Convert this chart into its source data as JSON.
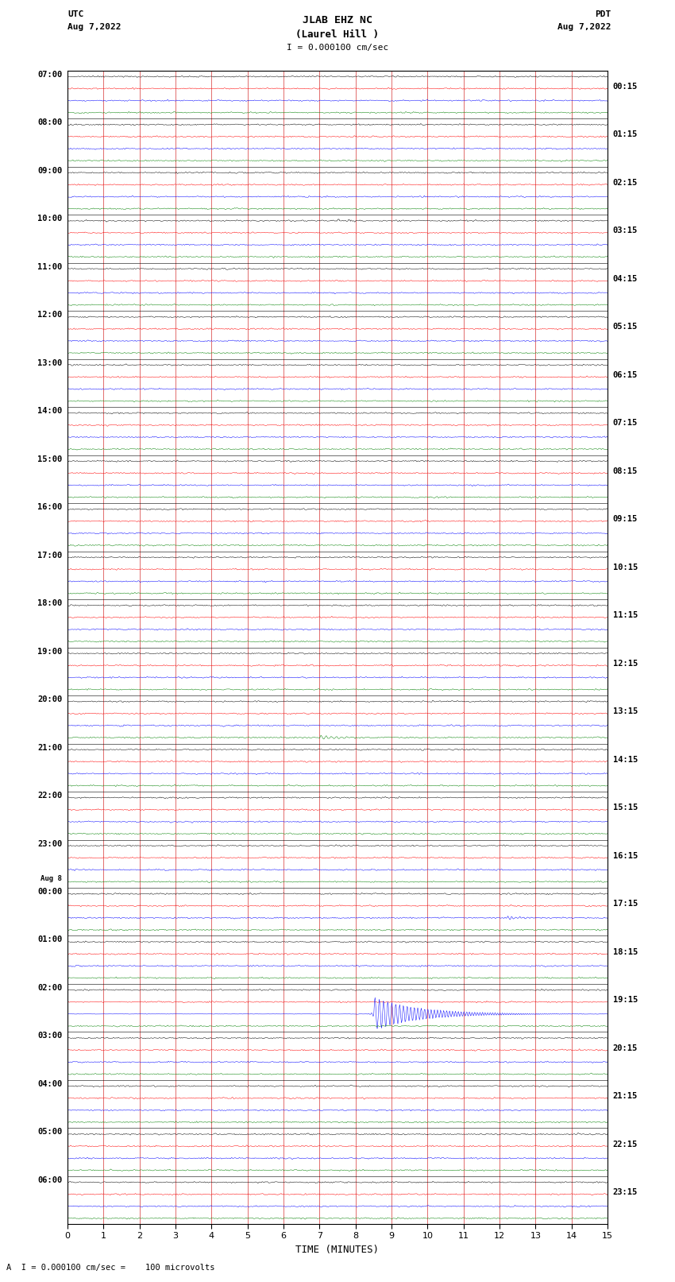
{
  "title_line1": "JLAB EHZ NC",
  "title_line2": "(Laurel Hill )",
  "title_line3": "I = 0.000100 cm/sec",
  "left_label_line1": "UTC",
  "left_label_line2": "Aug 7,2022",
  "right_label_line1": "PDT",
  "right_label_line2": "Aug 7,2022",
  "bottom_note": "A  I = 0.000100 cm/sec =    100 microvolts",
  "xlabel": "TIME (MINUTES)",
  "trace_colors": [
    "black",
    "red",
    "blue",
    "green"
  ],
  "left_times": [
    "07:00",
    "08:00",
    "09:00",
    "10:00",
    "11:00",
    "12:00",
    "13:00",
    "14:00",
    "15:00",
    "16:00",
    "17:00",
    "18:00",
    "19:00",
    "20:00",
    "21:00",
    "22:00",
    "23:00",
    "Aug 8",
    "00:00",
    "01:00",
    "02:00",
    "03:00",
    "04:00",
    "05:00",
    "06:00"
  ],
  "right_times": [
    "00:15",
    "01:15",
    "02:15",
    "03:15",
    "04:15",
    "05:15",
    "06:15",
    "07:15",
    "08:15",
    "09:15",
    "10:15",
    "11:15",
    "12:15",
    "13:15",
    "14:15",
    "15:15",
    "16:15",
    "17:15",
    "18:15",
    "19:15",
    "20:15",
    "21:15",
    "22:15",
    "23:15"
  ],
  "xmin": 0,
  "xmax": 15,
  "xticks": [
    0,
    1,
    2,
    3,
    4,
    5,
    6,
    7,
    8,
    9,
    10,
    11,
    12,
    13,
    14,
    15
  ],
  "background_color": "white",
  "grid_color": "#cc0000",
  "noise_amplitude": 0.035,
  "fig_width": 8.5,
  "fig_height": 16.13
}
